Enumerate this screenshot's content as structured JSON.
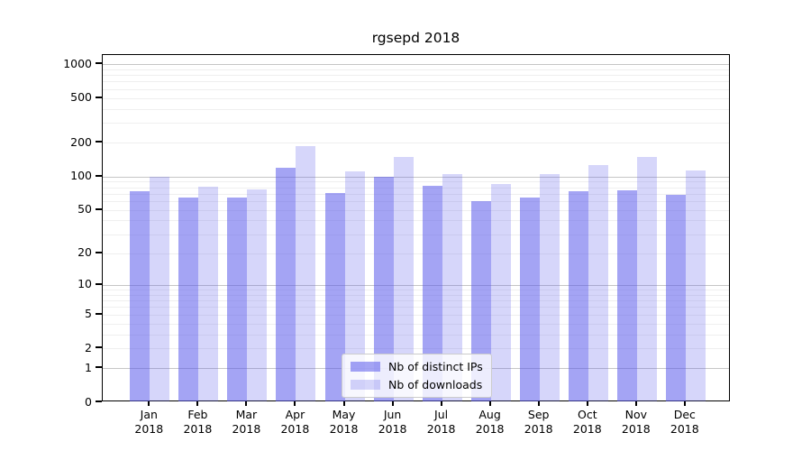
{
  "chart_data": {
    "type": "bar",
    "title": "rgsepd 2018",
    "scale": "log1p",
    "categories": [
      "Jan 2018",
      "Feb 2018",
      "Mar 2018",
      "Apr 2018",
      "May 2018",
      "Jun 2018",
      "Jul 2018",
      "Aug 2018",
      "Sep 2018",
      "Oct 2018",
      "Nov 2018",
      "Dec 2018"
    ],
    "series": [
      {
        "name": "Nb of distinct IPs",
        "color": "rgba(90,90,235,0.55)",
        "values": [
          74,
          64,
          64,
          120,
          71,
          100,
          83,
          60,
          64,
          73,
          75,
          68
        ]
      },
      {
        "name": "Nb of downloads",
        "color": "rgba(90,90,235,0.25)",
        "values": [
          100,
          81,
          76,
          185,
          111,
          148,
          105,
          85,
          104,
          126,
          150,
          113
        ]
      }
    ],
    "y_ticks": [
      0,
      1,
      2,
      5,
      10,
      20,
      50,
      100,
      200,
      500,
      1000
    ],
    "ylim": [
      0,
      1240
    ],
    "grid": {
      "major_at": [
        1,
        10,
        100,
        1000
      ],
      "major_color": "#c6c6c6",
      "minor_color": "#efefef"
    },
    "legend_position": "lower center",
    "colors": {
      "background": "#ffffff",
      "spine": "#000000",
      "text": "#000000"
    }
  }
}
